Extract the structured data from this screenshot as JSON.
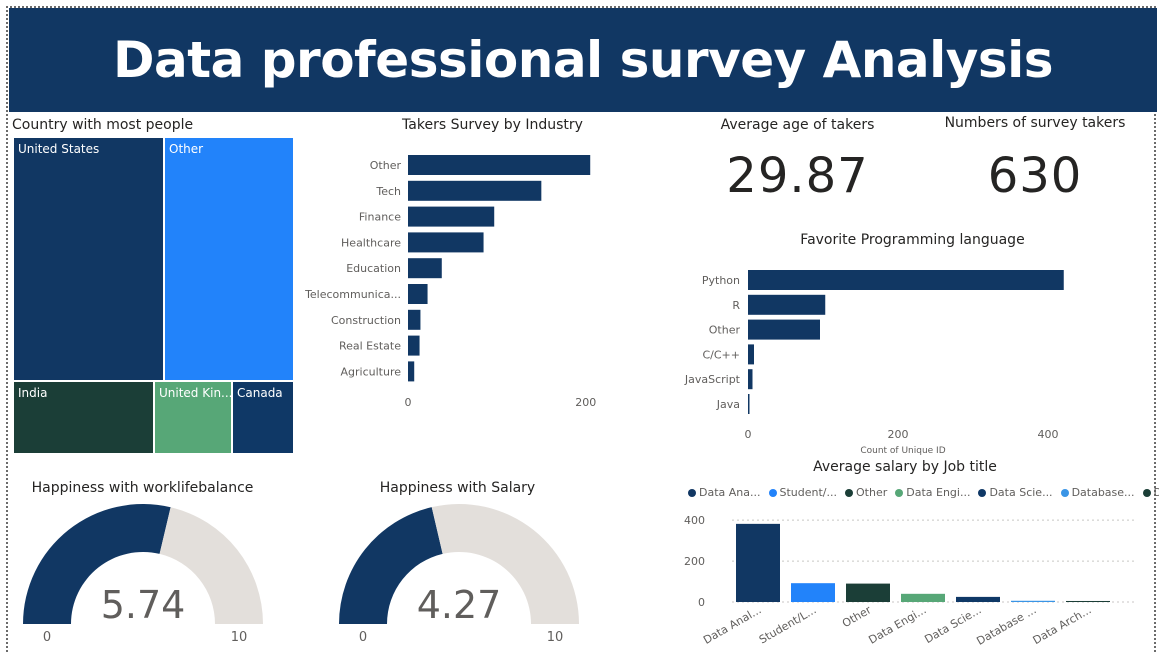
{
  "page": {
    "title": "Data professional survey Analysis"
  },
  "colors": {
    "navy": "#113763",
    "blue": "#2283fa",
    "darkgreen": "#1b3e37",
    "green": "#57a777",
    "navy2": "#0f3866",
    "lightblue": "#3a95e6",
    "gaugeTrack": "#e3dfdb"
  },
  "chart_data": [
    {
      "id": "treemap",
      "type": "treemap",
      "title": "Country with most people",
      "items": [
        {
          "label": "United States",
          "color": "#113763"
        },
        {
          "label": "Other",
          "color": "#2283fa"
        },
        {
          "label": "India",
          "color": "#1b3e37"
        },
        {
          "label": "United Kin...",
          "color": "#57a777"
        },
        {
          "label": "Canada",
          "color": "#0f3866"
        }
      ]
    },
    {
      "id": "industry",
      "type": "bar",
      "orientation": "horizontal",
      "title": "Takers Survey by Industry",
      "categories": [
        "Other",
        "Tech",
        "Finance",
        "Healthcare",
        "Education",
        "Telecommunica...",
        "Construction",
        "Real Estate",
        "Agriculture"
      ],
      "values": [
        205,
        150,
        97,
        85,
        38,
        22,
        14,
        13,
        7
      ],
      "xlim": [
        0,
        225
      ],
      "ticks": [
        0,
        200
      ],
      "xlabel": "",
      "ylabel": ""
    },
    {
      "id": "languages",
      "type": "bar",
      "orientation": "horizontal",
      "title": "Favorite Programming language",
      "categories": [
        "Python",
        "R",
        "Other",
        "C/C++",
        "JavaScript",
        "Java"
      ],
      "values": [
        421,
        103,
        96,
        8,
        6,
        2
      ],
      "xlim": [
        0,
        440
      ],
      "ticks": [
        0,
        200,
        400
      ],
      "xlabel": "Count of Unique ID",
      "ylabel": ""
    },
    {
      "id": "salary",
      "type": "bar",
      "title": "Average salary by Job title",
      "categories": [
        "Data Anal...",
        "Student/L...",
        "Other",
        "Data Engi...",
        "Data Scie...",
        "Database ...",
        "Data Arch..."
      ],
      "legend": [
        "Data Ana...",
        "Student/...",
        "Other",
        "Data Engi...",
        "Data Scie...",
        "Database...",
        "Data Arc..."
      ],
      "colors": [
        "#113763",
        "#2283fa",
        "#1b3e37",
        "#57a777",
        "#0f3866",
        "#3a95e6",
        "#1b3e37"
      ],
      "values": [
        382,
        92,
        90,
        40,
        25,
        6,
        5
      ],
      "ylim": [
        0,
        440
      ],
      "ticks": [
        0,
        200,
        400
      ],
      "legend_position": "top-left",
      "xlabel": "",
      "ylabel": ""
    },
    {
      "id": "gauge_wlb",
      "type": "gauge",
      "title": "Happiness with worklifebalance",
      "value": 5.74,
      "value_label": "5.74",
      "min": 0,
      "max": 10,
      "min_label": "0",
      "max_label": "10"
    },
    {
      "id": "gauge_salary",
      "type": "gauge",
      "title": "Happiness with Salary",
      "value": 4.27,
      "value_label": "4.27",
      "min": 0,
      "max": 10,
      "min_label": "0",
      "max_label": "10"
    }
  ],
  "kpis": {
    "age": {
      "title": "Average age of takers",
      "value": "29.87"
    },
    "count": {
      "title": "Numbers of survey takers",
      "value": "630"
    }
  }
}
